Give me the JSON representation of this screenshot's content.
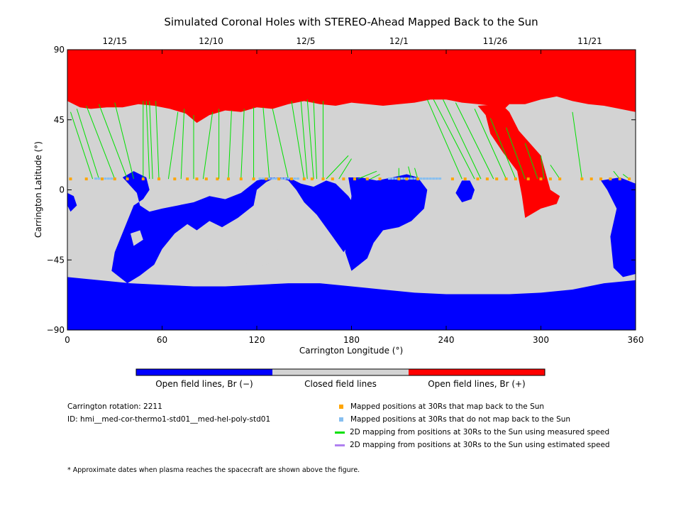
{
  "chart_data": {
    "type": "map",
    "title": "Simulated Coronal Holes with STEREO-Ahead Mapped Back to the Sun",
    "xlabel": "Carrington Longitude (°)",
    "ylabel": "Carrington Latitude (°)",
    "xlim": [
      0,
      360
    ],
    "ylim": [
      -90,
      90
    ],
    "x_ticks": [
      "0",
      "60",
      "120",
      "180",
      "240",
      "300",
      "360"
    ],
    "y_ticks": [
      "90",
      "45",
      "0",
      "-45",
      "-90"
    ],
    "date_ticks": [
      {
        "lon": 30,
        "label": "12/15"
      },
      {
        "lon": 91,
        "label": "12/10"
      },
      {
        "lon": 151,
        "label": "12/5"
      },
      {
        "lon": 210,
        "label": "12/1"
      },
      {
        "lon": 271,
        "label": "11/26"
      },
      {
        "lon": 331,
        "label": "11/21"
      }
    ],
    "colorbar": [
      {
        "label": "Open field lines, Br (−)",
        "color": "#0000ff"
      },
      {
        "label": "Closed field lines",
        "color": "#d3d3d3"
      },
      {
        "label": "Open field lines, Br (+)",
        "color": "#ff0000"
      }
    ],
    "colors": {
      "negative": "#0000ff",
      "closed": "#d3d3d3",
      "positive": "#ff0000",
      "mapped": "#ffa500",
      "unmapped": "#87bff0",
      "measured": "#00e000",
      "estimated": "#b080f0"
    },
    "positive_hole_top": [
      [
        0,
        57
      ],
      [
        8,
        53
      ],
      [
        15,
        52
      ],
      [
        25,
        53
      ],
      [
        35,
        53
      ],
      [
        45,
        55
      ],
      [
        55,
        54
      ],
      [
        65,
        52
      ],
      [
        75,
        49
      ],
      [
        82,
        43
      ],
      [
        90,
        48
      ],
      [
        100,
        51
      ],
      [
        110,
        50
      ],
      [
        120,
        53
      ],
      [
        130,
        52
      ],
      [
        140,
        55
      ],
      [
        150,
        57
      ],
      [
        160,
        55
      ],
      [
        170,
        54
      ],
      [
        180,
        56
      ],
      [
        190,
        55
      ],
      [
        200,
        54
      ],
      [
        210,
        55
      ],
      [
        220,
        56
      ],
      [
        230,
        58
      ],
      [
        240,
        58
      ],
      [
        250,
        56
      ],
      [
        260,
        55
      ],
      [
        270,
        54
      ],
      [
        275,
        50
      ],
      [
        280,
        55
      ],
      [
        290,
        55
      ],
      [
        300,
        58
      ],
      [
        310,
        60
      ],
      [
        320,
        57
      ],
      [
        330,
        55
      ],
      [
        340,
        54
      ],
      [
        350,
        52
      ],
      [
        360,
        50
      ]
    ],
    "positive_hole_lobe": [
      [
        260,
        54
      ],
      [
        265,
        48
      ],
      [
        268,
        36
      ],
      [
        276,
        24
      ],
      [
        285,
        12
      ],
      [
        288,
        -4
      ],
      [
        290,
        -18
      ],
      [
        300,
        -12
      ],
      [
        310,
        -9
      ],
      [
        312,
        -4
      ],
      [
        306,
        0
      ],
      [
        300,
        22
      ],
      [
        286,
        38
      ],
      [
        280,
        50
      ],
      [
        275,
        55
      ]
    ],
    "negative_hole_south": [
      [
        0,
        -56
      ],
      [
        20,
        -58
      ],
      [
        40,
        -60
      ],
      [
        60,
        -61
      ],
      [
        80,
        -62
      ],
      [
        100,
        -62
      ],
      [
        120,
        -61
      ],
      [
        140,
        -60
      ],
      [
        160,
        -60
      ],
      [
        180,
        -62
      ],
      [
        200,
        -64
      ],
      [
        220,
        -66
      ],
      [
        240,
        -67
      ],
      [
        260,
        -67
      ],
      [
        280,
        -67
      ],
      [
        300,
        -66
      ],
      [
        320,
        -64
      ],
      [
        340,
        -60
      ],
      [
        360,
        -58
      ]
    ],
    "mapped_points_lon": [
      2,
      12,
      22,
      30,
      38,
      48,
      58,
      68,
      76,
      82,
      88,
      95,
      102,
      110,
      118,
      126,
      134,
      142,
      150,
      155,
      162,
      168,
      175,
      182,
      190,
      198,
      210,
      215,
      222,
      244,
      252,
      260,
      266,
      272,
      278,
      284,
      292,
      300,
      306,
      312,
      326,
      332,
      338,
      344,
      350,
      356
    ],
    "mapped_lat": 7,
    "unmapped_segments": [
      [
        18,
        30
      ],
      [
        122,
        146
      ],
      [
        204,
        236
      ]
    ],
    "fieldline_sample_pairs": [
      [
        2,
        50,
        16,
        7
      ],
      [
        6,
        52,
        20,
        7
      ],
      [
        12,
        54,
        30,
        7
      ],
      [
        20,
        55,
        38,
        7
      ],
      [
        30,
        56,
        42,
        7
      ],
      [
        48,
        57,
        48,
        7
      ],
      [
        50,
        57,
        52,
        7
      ],
      [
        52,
        57,
        54,
        7
      ],
      [
        56,
        57,
        58,
        7
      ],
      [
        70,
        50,
        64,
        7
      ],
      [
        74,
        52,
        72,
        7
      ],
      [
        80,
        48,
        80,
        7
      ],
      [
        92,
        50,
        86,
        7
      ],
      [
        96,
        52,
        96,
        7
      ],
      [
        104,
        51,
        102,
        7
      ],
      [
        112,
        52,
        110,
        7
      ],
      [
        118,
        53,
        118,
        7
      ],
      [
        124,
        53,
        128,
        7
      ],
      [
        130,
        52,
        140,
        7
      ],
      [
        142,
        57,
        150,
        7
      ],
      [
        148,
        57,
        152,
        7
      ],
      [
        152,
        58,
        156,
        7
      ],
      [
        156,
        57,
        158,
        7
      ],
      [
        162,
        57,
        162,
        7
      ],
      [
        178,
        22,
        164,
        7
      ],
      [
        180,
        20,
        172,
        7
      ],
      [
        196,
        12,
        184,
        7
      ],
      [
        198,
        10,
        192,
        7
      ],
      [
        210,
        14,
        210,
        7
      ],
      [
        216,
        15,
        218,
        7
      ],
      [
        220,
        14,
        222,
        7
      ],
      [
        228,
        58,
        250,
        7
      ],
      [
        232,
        58,
        258,
        7
      ],
      [
        238,
        58,
        262,
        7
      ],
      [
        246,
        56,
        270,
        7
      ],
      [
        258,
        52,
        278,
        7
      ],
      [
        268,
        46,
        284,
        7
      ],
      [
        278,
        40,
        290,
        7
      ],
      [
        290,
        30,
        298,
        7
      ],
      [
        300,
        22,
        302,
        7
      ],
      [
        306,
        16,
        312,
        7
      ],
      [
        320,
        50,
        326,
        7
      ],
      [
        346,
        12,
        350,
        7
      ],
      [
        352,
        10,
        356,
        7
      ]
    ]
  },
  "colorbar_labels": [
    "Open field lines, Br (−)",
    "Closed field lines",
    "Open field lines, Br (+)"
  ],
  "meta": {
    "rotation": "Carrington rotation: 2211",
    "id": "ID: hmi__med-cor-thermo1-std01__med-hel-poly-std01"
  },
  "legend": [
    {
      "label": "Mapped positions at 30Rs that map back to the Sun",
      "marker": "square",
      "color": "#ffa500"
    },
    {
      "label": "Mapped positions at 30Rs that do not map back to the Sun",
      "marker": "square",
      "color": "#87bff0"
    },
    {
      "label": "2D mapping from positions at 30Rs to the Sun using measured speed",
      "marker": "line",
      "color": "#00e000"
    },
    {
      "label": "2D mapping from positions at 30Rs to the Sun using estimated speed",
      "marker": "line",
      "color": "#b080f0"
    }
  ],
  "footnote": "* Approximate dates when plasma reaches the spacecraft are shown above the figure."
}
